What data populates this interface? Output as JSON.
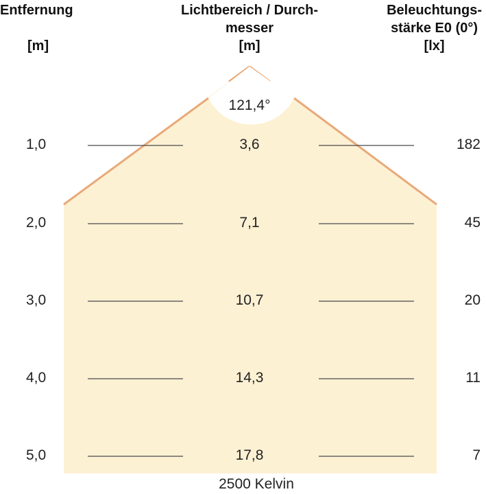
{
  "headers": {
    "distance": {
      "line1": "Entfernung",
      "unit": "[m]"
    },
    "diameter": {
      "line1": "Lichtbereich / Durch-",
      "line2": "messer",
      "unit": "[m]"
    },
    "illuminance": {
      "line1": "Beleuchtungs-",
      "line2": "stärke E0 (0°)",
      "unit": "[lx]"
    }
  },
  "beam_angle": "121,4°",
  "rows": [
    {
      "distance": "1,0",
      "diameter": "3,6",
      "illuminance": "182"
    },
    {
      "distance": "2,0",
      "diameter": "7,1",
      "illuminance": "45"
    },
    {
      "distance": "3,0",
      "diameter": "10,7",
      "illuminance": "20"
    },
    {
      "distance": "4,0",
      "diameter": "14,3",
      "illuminance": "11"
    },
    {
      "distance": "5,0",
      "diameter": "17,8",
      "illuminance": "7"
    }
  ],
  "footer": "2500 Kelvin",
  "colors": {
    "light_fill": "#fdf1d4",
    "beam_edge": "#e8a978",
    "rule": "#4a4a4a",
    "text": "#222222"
  }
}
